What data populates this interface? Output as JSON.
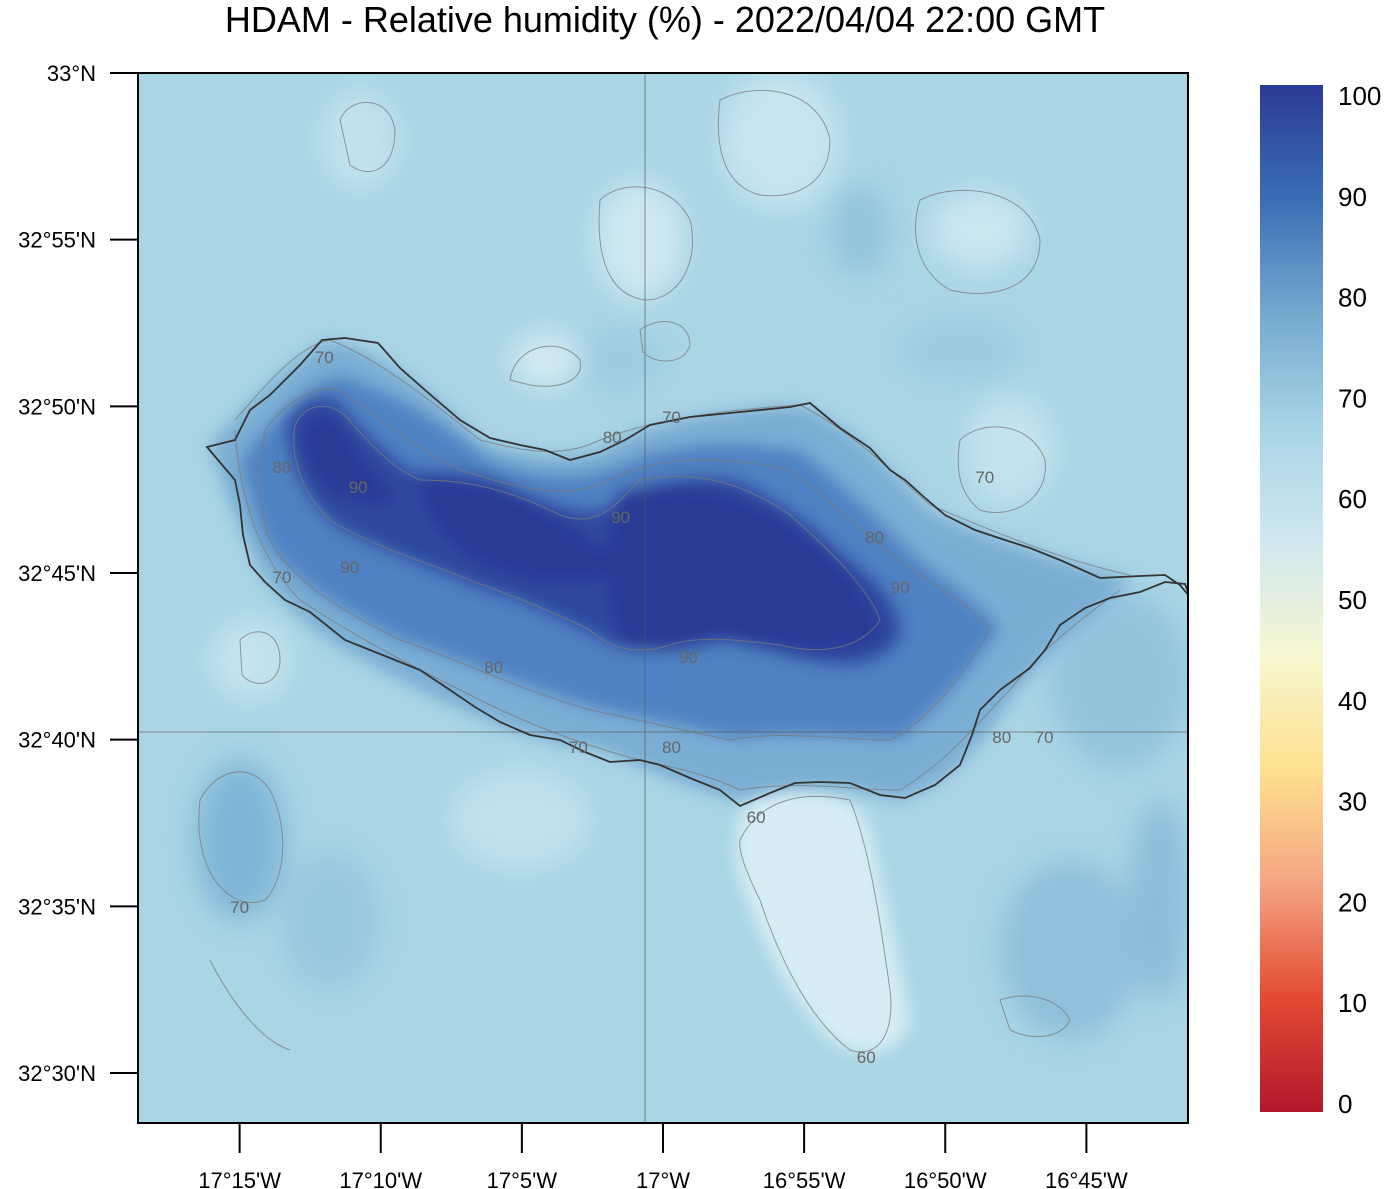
{
  "title": "HDAM - Relative humidity (%)  -  2022/04/04  22:00 GMT",
  "map": {
    "lat_ticks": [
      "33°N",
      "32°55'N",
      "32°50'N",
      "32°45'N",
      "32°40'N",
      "32°35'N",
      "32°30'N"
    ],
    "lon_ticks": [
      "17°15'W",
      "17°10'W",
      "17°5'W",
      "17°W",
      "16°55'W",
      "16°50'W",
      "16°45'W"
    ],
    "contour_labels": [
      {
        "text": "70",
        "lon": -17.2,
        "lat": 32.855
      },
      {
        "text": "80",
        "lon": -17.225,
        "lat": 32.8
      },
      {
        "text": "90",
        "lon": -17.18,
        "lat": 32.79
      },
      {
        "text": "90",
        "lon": -17.185,
        "lat": 32.75
      },
      {
        "text": "70",
        "lon": -17.225,
        "lat": 32.745
      },
      {
        "text": "80",
        "lon": -17.1,
        "lat": 32.7
      },
      {
        "text": "70",
        "lon": -17.05,
        "lat": 32.66
      },
      {
        "text": "80",
        "lon": -16.995,
        "lat": 32.66
      },
      {
        "text": "90",
        "lon": -16.985,
        "lat": 32.705
      },
      {
        "text": "80",
        "lon": -17.03,
        "lat": 32.815
      },
      {
        "text": "90",
        "lon": -17.025,
        "lat": 32.775
      },
      {
        "text": "70",
        "lon": -16.995,
        "lat": 32.825
      },
      {
        "text": "80",
        "lon": -16.875,
        "lat": 32.765
      },
      {
        "text": "90",
        "lon": -16.86,
        "lat": 32.74
      },
      {
        "text": "70",
        "lon": -16.81,
        "lat": 32.795
      },
      {
        "text": "80",
        "lon": -16.8,
        "lat": 32.665
      },
      {
        "text": "70",
        "lon": -16.775,
        "lat": 32.665
      },
      {
        "text": "60",
        "lon": -16.945,
        "lat": 32.625
      },
      {
        "text": "70",
        "lon": -17.25,
        "lat": 32.58
      },
      {
        "text": "60",
        "lon": -16.88,
        "lat": 32.505
      }
    ]
  },
  "colorbar": {
    "labels": [
      "100",
      "90",
      "80",
      "70",
      "60",
      "50",
      "40",
      "30",
      "20",
      "10",
      "0"
    ],
    "stops": [
      "#b2182b",
      "#e34a33",
      "#f4a582",
      "#fee090",
      "#f7f7d0",
      "#cfe8f0",
      "#a8d4e6",
      "#74a9cf",
      "#3a6eb4",
      "#2b3a96"
    ]
  },
  "chart_data": {
    "type": "heatmap",
    "title": "HDAM - Relative humidity (%)  -  2022/04/04  22:00 GMT",
    "variable": "Relative humidity (%)",
    "x_range": [
      -17.31,
      -16.69
    ],
    "y_range": [
      32.475,
      33.0
    ],
    "color_range": [
      0,
      100
    ],
    "features": [
      {
        "name": "ocean background",
        "value_range": [
          60,
          70
        ]
      },
      {
        "name": "western island core",
        "lon": -17.12,
        "lat": 32.775,
        "value": 100
      },
      {
        "name": "central island core",
        "lon": -17.01,
        "lat": 32.73,
        "value": 100
      },
      {
        "name": "eastern island core",
        "lon": -16.9,
        "lat": 32.74,
        "value": 100
      },
      {
        "name": "southern dry plume",
        "lon": -16.88,
        "lat": 32.56,
        "value": 58
      },
      {
        "name": "northern dry cell",
        "lon": -17.04,
        "lat": 32.86,
        "value": 59
      }
    ]
  }
}
